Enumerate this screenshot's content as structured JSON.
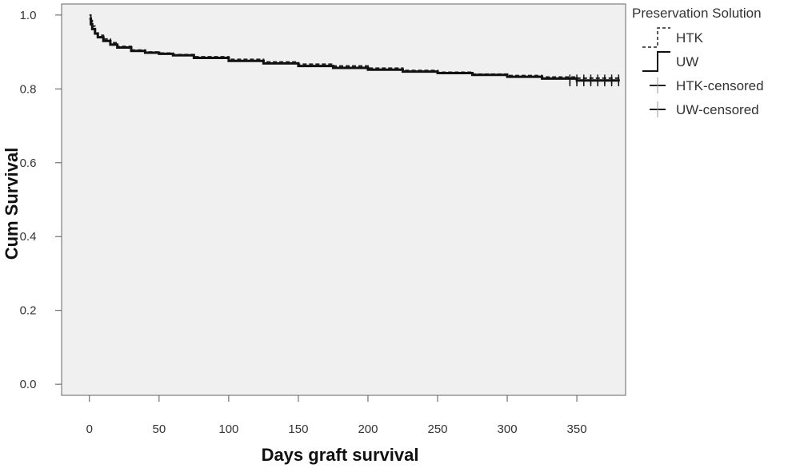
{
  "chart_data": {
    "type": "line",
    "title": "",
    "xlabel": "Days graft survival",
    "ylabel": "Cum Survival",
    "xlim": [
      -20,
      385
    ],
    "ylim": [
      -0.03,
      1.03
    ],
    "x_ticks": [
      0,
      50,
      100,
      150,
      200,
      250,
      300,
      350
    ],
    "y_ticks": [
      0.0,
      0.2,
      0.4,
      0.6,
      0.8,
      1.0
    ],
    "y_tick_labels": [
      "0.0",
      "0.2",
      "0.4",
      "0.6",
      "0.8",
      "1.0"
    ],
    "grid": false,
    "legend_position": "top-right",
    "legend_title": "Preservation Solution",
    "plot_background": "#f0f0f0",
    "series": [
      {
        "name": "HTK",
        "style": "dashed",
        "color": "#222222",
        "x": [
          0,
          1,
          2,
          4,
          6,
          10,
          15,
          20,
          30,
          40,
          50,
          60,
          75,
          100,
          125,
          150,
          175,
          200,
          225,
          250,
          275,
          300,
          325,
          350,
          380
        ],
        "y": [
          1.0,
          0.985,
          0.97,
          0.955,
          0.945,
          0.935,
          0.925,
          0.915,
          0.905,
          0.9,
          0.897,
          0.893,
          0.887,
          0.88,
          0.873,
          0.867,
          0.862,
          0.856,
          0.85,
          0.845,
          0.84,
          0.836,
          0.832,
          0.829,
          0.826
        ]
      },
      {
        "name": "UW",
        "style": "solid",
        "color": "#111111",
        "x": [
          0,
          1,
          2,
          4,
          6,
          10,
          15,
          20,
          30,
          40,
          50,
          60,
          75,
          100,
          125,
          150,
          175,
          200,
          225,
          250,
          275,
          300,
          325,
          350,
          380
        ],
        "y": [
          0.99,
          0.975,
          0.962,
          0.95,
          0.94,
          0.93,
          0.92,
          0.912,
          0.903,
          0.898,
          0.895,
          0.891,
          0.884,
          0.876,
          0.869,
          0.862,
          0.857,
          0.852,
          0.847,
          0.843,
          0.838,
          0.833,
          0.828,
          0.823,
          0.82
        ]
      }
    ],
    "legend": [
      {
        "label": "HTK",
        "kind": "line",
        "style": "dashed"
      },
      {
        "label": "UW",
        "kind": "line",
        "style": "solid"
      },
      {
        "label": "HTK-censored",
        "kind": "marker"
      },
      {
        "label": "UW-censored",
        "kind": "marker"
      }
    ],
    "censored_x": [
      345,
      350,
      355,
      360,
      365,
      370,
      375,
      380
    ]
  }
}
